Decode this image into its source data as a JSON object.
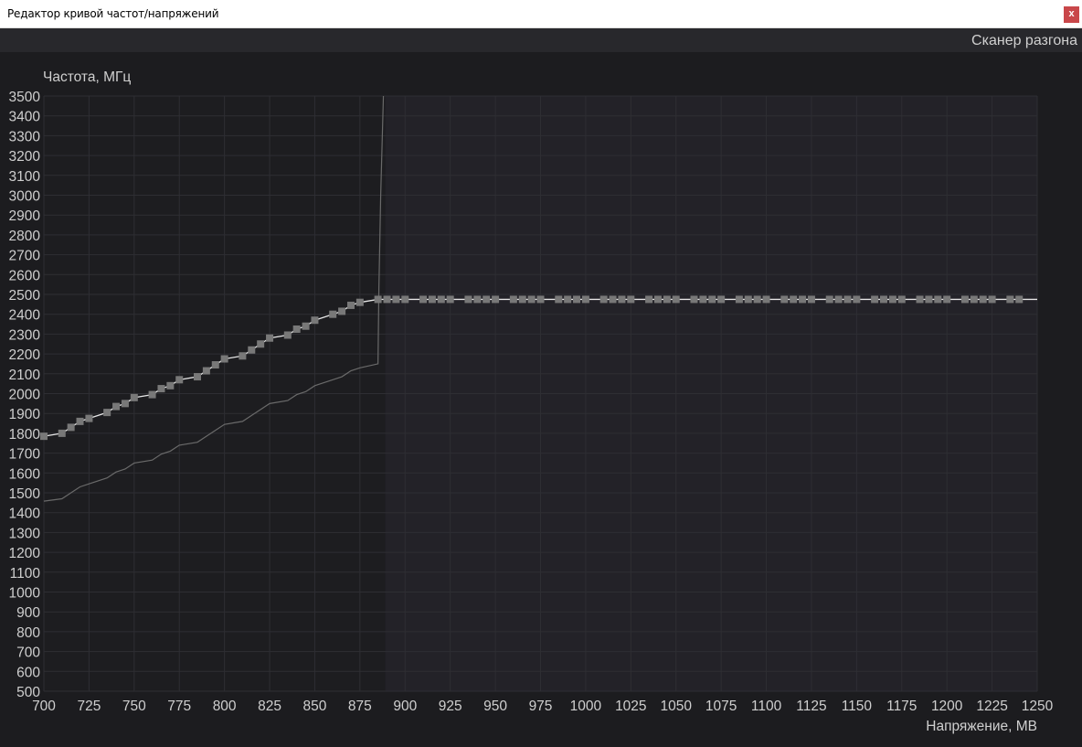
{
  "window": {
    "title": "Редактор кривой частот/напряжений",
    "close_label": "x"
  },
  "toolbar": {
    "scanner_label": "Сканер разгона"
  },
  "colors": {
    "background": "#1c1c1f",
    "plot_left": "#1d1d20",
    "plot_right": "#232228",
    "grid": "#2e2e33",
    "curve": "#e6e6e6",
    "points": "#787878",
    "measured": "#6a6a6a",
    "close": "#c9474a"
  },
  "chart_data": {
    "type": "line",
    "ylabel": "Частота, МГц",
    "xlabel": "Напряжение, МВ",
    "xlim": [
      700,
      1250
    ],
    "ylim": [
      500,
      3500
    ],
    "x_ticks": [
      700,
      725,
      750,
      775,
      800,
      825,
      850,
      875,
      900,
      925,
      950,
      975,
      1000,
      1025,
      1050,
      1075,
      1100,
      1125,
      1150,
      1175,
      1200,
      1225,
      1250
    ],
    "y_ticks": [
      500,
      600,
      700,
      800,
      900,
      1000,
      1100,
      1200,
      1300,
      1400,
      1500,
      1600,
      1700,
      1800,
      1900,
      2000,
      2100,
      2200,
      2300,
      2400,
      2500,
      2600,
      2700,
      2800,
      2900,
      3000,
      3100,
      3200,
      3300,
      3400,
      3500
    ],
    "grid": true,
    "highlight_from_voltage": 889,
    "curve_points": [
      [
        700,
        1785
      ],
      [
        710,
        1800
      ],
      [
        715,
        1830
      ],
      [
        720,
        1860
      ],
      [
        725,
        1875
      ],
      [
        735,
        1905
      ],
      [
        740,
        1935
      ],
      [
        745,
        1950
      ],
      [
        750,
        1980
      ],
      [
        760,
        1995
      ],
      [
        765,
        2025
      ],
      [
        770,
        2040
      ],
      [
        775,
        2070
      ],
      [
        785,
        2085
      ],
      [
        790,
        2115
      ],
      [
        795,
        2145
      ],
      [
        800,
        2175
      ],
      [
        810,
        2190
      ],
      [
        815,
        2220
      ],
      [
        820,
        2250
      ],
      [
        825,
        2280
      ],
      [
        835,
        2295
      ],
      [
        840,
        2325
      ],
      [
        845,
        2340
      ],
      [
        850,
        2370
      ],
      [
        860,
        2400
      ],
      [
        865,
        2415
      ],
      [
        870,
        2445
      ],
      [
        875,
        2460
      ],
      [
        885,
        2475
      ],
      [
        890,
        2475
      ],
      [
        895,
        2475
      ],
      [
        900,
        2475
      ],
      [
        910,
        2475
      ],
      [
        915,
        2475
      ],
      [
        920,
        2475
      ],
      [
        925,
        2475
      ],
      [
        935,
        2475
      ],
      [
        940,
        2475
      ],
      [
        945,
        2475
      ],
      [
        950,
        2475
      ],
      [
        960,
        2475
      ],
      [
        965,
        2475
      ],
      [
        970,
        2475
      ],
      [
        975,
        2475
      ],
      [
        985,
        2475
      ],
      [
        990,
        2475
      ],
      [
        995,
        2475
      ],
      [
        1000,
        2475
      ],
      [
        1010,
        2475
      ],
      [
        1015,
        2475
      ],
      [
        1020,
        2475
      ],
      [
        1025,
        2475
      ],
      [
        1035,
        2475
      ],
      [
        1040,
        2475
      ],
      [
        1045,
        2475
      ],
      [
        1050,
        2475
      ],
      [
        1060,
        2475
      ],
      [
        1065,
        2475
      ],
      [
        1070,
        2475
      ],
      [
        1075,
        2475
      ],
      [
        1085,
        2475
      ],
      [
        1090,
        2475
      ],
      [
        1095,
        2475
      ],
      [
        1100,
        2475
      ],
      [
        1110,
        2475
      ],
      [
        1115,
        2475
      ],
      [
        1120,
        2475
      ],
      [
        1125,
        2475
      ],
      [
        1135,
        2475
      ],
      [
        1140,
        2475
      ],
      [
        1145,
        2475
      ],
      [
        1150,
        2475
      ],
      [
        1160,
        2475
      ],
      [
        1165,
        2475
      ],
      [
        1170,
        2475
      ],
      [
        1175,
        2475
      ],
      [
        1185,
        2475
      ],
      [
        1190,
        2475
      ],
      [
        1195,
        2475
      ],
      [
        1200,
        2475
      ],
      [
        1210,
        2475
      ],
      [
        1215,
        2475
      ],
      [
        1220,
        2475
      ],
      [
        1225,
        2475
      ],
      [
        1235,
        2475
      ],
      [
        1240,
        2475
      ]
    ],
    "curve_line_end": [
      1250,
      2475
    ],
    "measured_curve": [
      [
        700,
        1458
      ],
      [
        710,
        1470
      ],
      [
        715,
        1500
      ],
      [
        720,
        1530
      ],
      [
        725,
        1545
      ],
      [
        735,
        1575
      ],
      [
        740,
        1605
      ],
      [
        745,
        1620
      ],
      [
        750,
        1650
      ],
      [
        760,
        1665
      ],
      [
        765,
        1695
      ],
      [
        770,
        1710
      ],
      [
        775,
        1740
      ],
      [
        785,
        1755
      ],
      [
        790,
        1785
      ],
      [
        795,
        1815
      ],
      [
        800,
        1845
      ],
      [
        810,
        1860
      ],
      [
        815,
        1890
      ],
      [
        820,
        1920
      ],
      [
        825,
        1950
      ],
      [
        835,
        1965
      ],
      [
        840,
        1995
      ],
      [
        845,
        2010
      ],
      [
        850,
        2040
      ],
      [
        860,
        2070
      ],
      [
        865,
        2085
      ],
      [
        870,
        2115
      ],
      [
        875,
        2130
      ],
      [
        885,
        2150
      ],
      [
        885.5,
        2530
      ],
      [
        886.5,
        3000
      ],
      [
        888,
        3500
      ]
    ]
  }
}
